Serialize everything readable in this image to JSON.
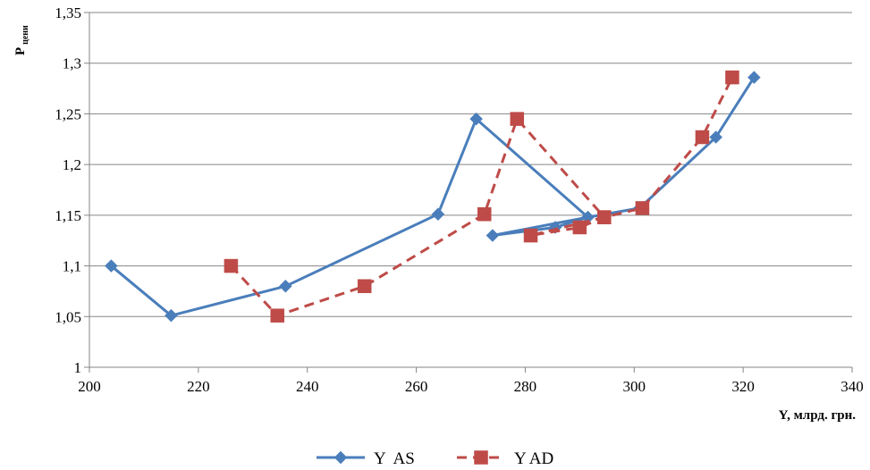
{
  "chart_data": {
    "type": "line",
    "title": "",
    "xlabel": "Y, млрд. грн.",
    "ylabel": "P",
    "ylabel_sub": "цени",
    "xlim": [
      200,
      340
    ],
    "ylim": [
      1,
      1.35
    ],
    "x_ticks": [
      200,
      220,
      240,
      260,
      280,
      300,
      320,
      340
    ],
    "y_ticks": [
      1,
      1.05,
      1.1,
      1.15,
      1.2,
      1.25,
      1.3,
      1.35
    ],
    "x_tick_labels": [
      "200",
      "220",
      "240",
      "260",
      "280",
      "300",
      "320",
      "340"
    ],
    "y_tick_labels": [
      "1",
      "1,05",
      "1,1",
      "1,15",
      "1,2",
      "1,25",
      "1,3",
      "1,35"
    ],
    "grid": "horizontal",
    "legend_position": "bottom",
    "series": [
      {
        "name": "Y  AS",
        "color": "#4a7ebb",
        "dash": "solid",
        "marker": "diamond",
        "x": [
          204,
          215,
          236,
          264,
          271,
          291.5,
          274,
          285.5,
          291.5,
          301,
          315,
          322
        ],
        "y": [
          1.1,
          1.051,
          1.08,
          1.151,
          1.245,
          1.148,
          1.13,
          1.138,
          1.148,
          1.157,
          1.227,
          1.286
        ]
      },
      {
        "name": "Y AD",
        "color": "#be4b48",
        "dash": "dashed",
        "marker": "square",
        "x": [
          226,
          234.5,
          250.5,
          272.5,
          278.5,
          294.5,
          281,
          290,
          294.5,
          301.5,
          312.5,
          318
        ],
        "y": [
          1.1,
          1.051,
          1.08,
          1.151,
          1.245,
          1.148,
          1.13,
          1.138,
          1.148,
          1.157,
          1.227,
          1.286
        ]
      }
    ]
  }
}
